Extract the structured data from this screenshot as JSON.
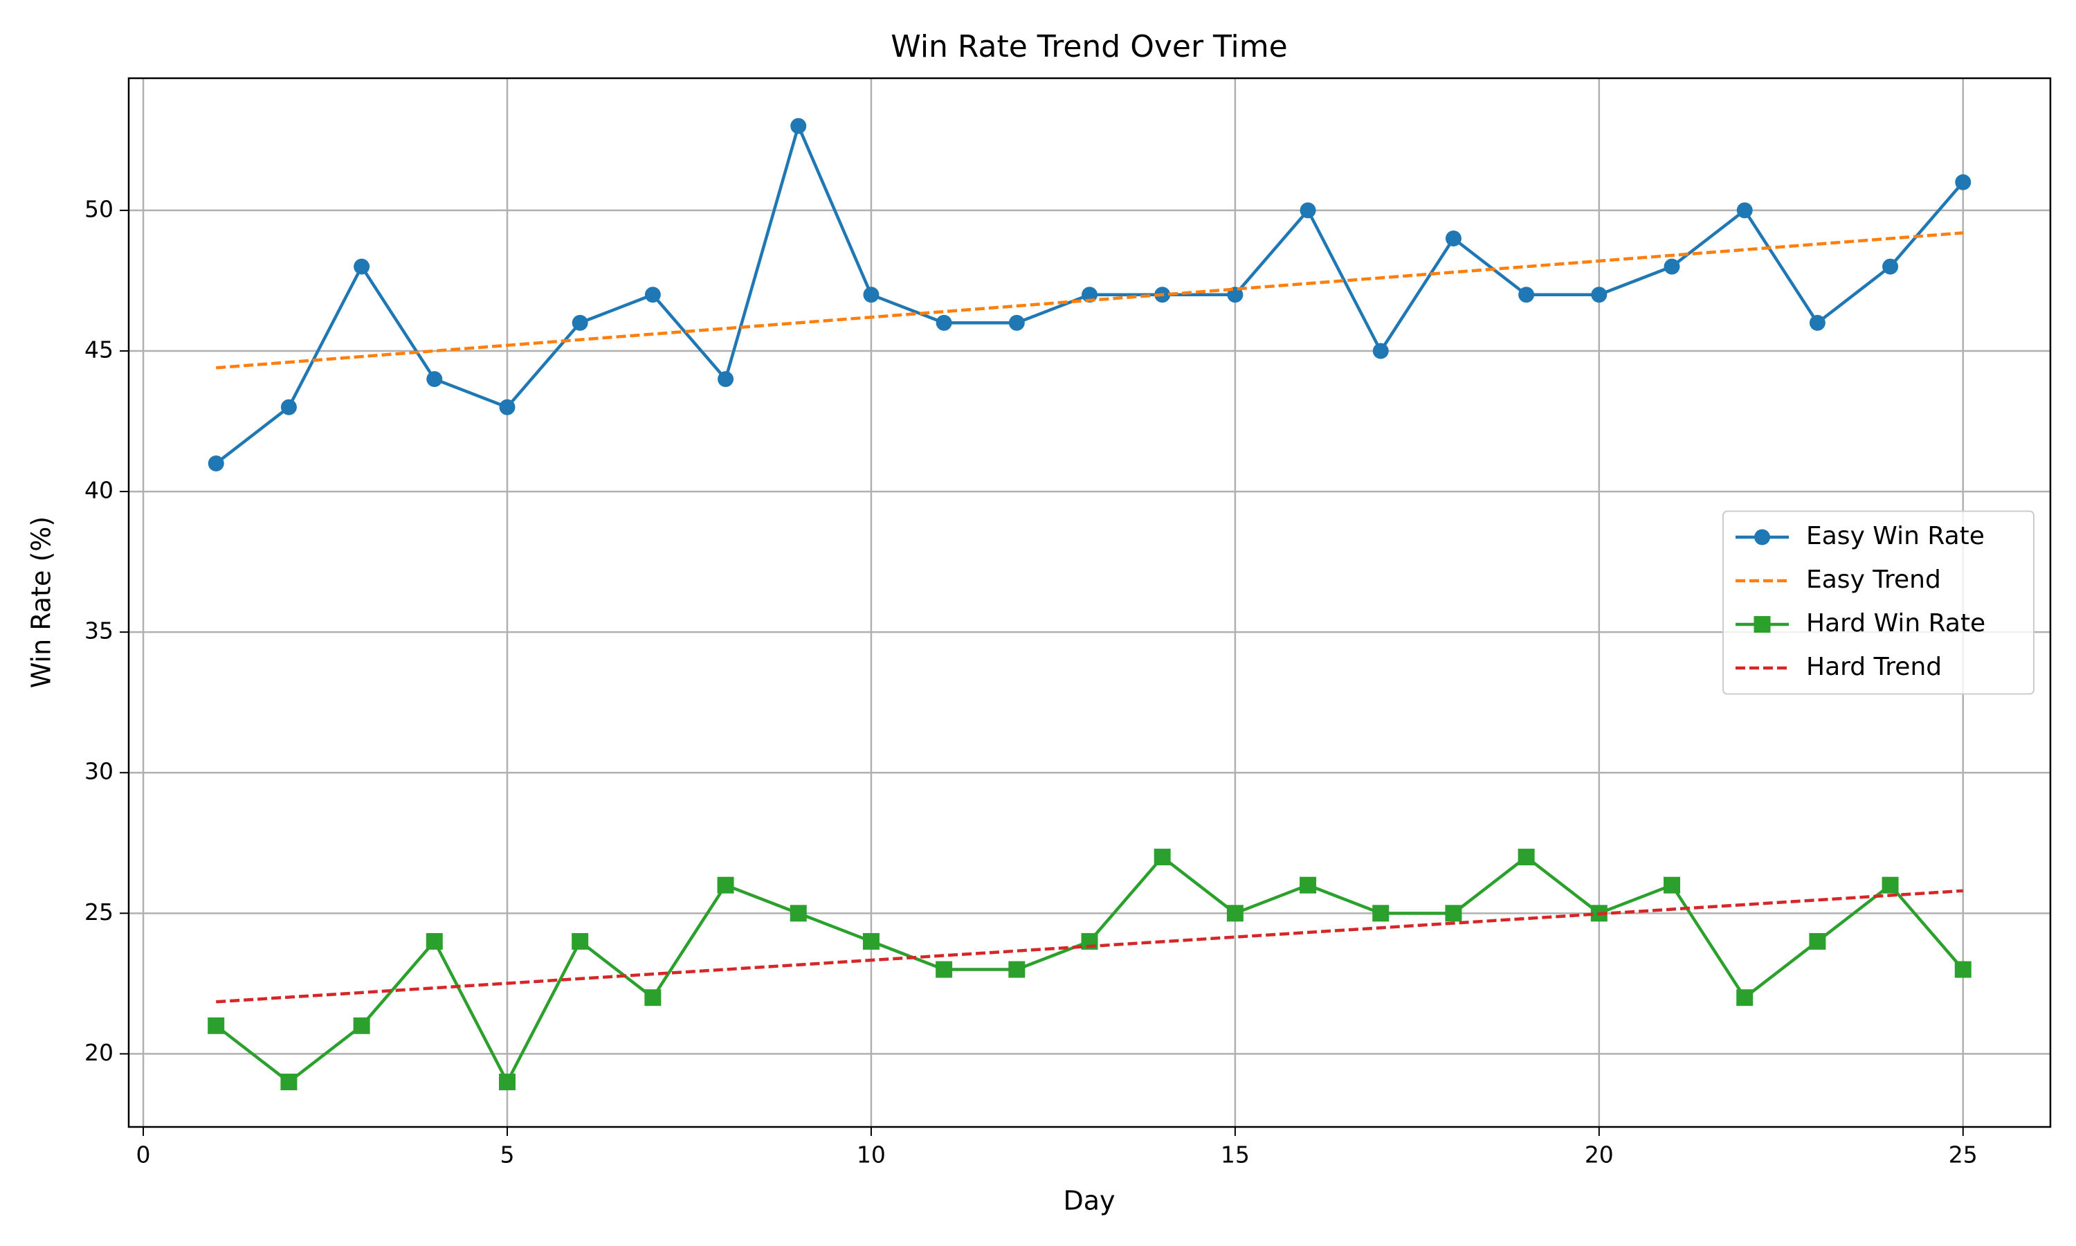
{
  "chart_data": {
    "type": "line",
    "title": "Win Rate Trend Over Time",
    "xlabel": "Day",
    "ylabel": "Win Rate (%)",
    "xlim": [
      -0.2,
      26.2
    ],
    "ylim": [
      17.4,
      54.7
    ],
    "xticks": [
      0,
      5,
      10,
      15,
      20,
      25
    ],
    "yticks": [
      20,
      25,
      30,
      35,
      40,
      45,
      50
    ],
    "grid": true,
    "legend": "center right",
    "series": [
      {
        "name": "Easy Win Rate",
        "color": "#1f77b4",
        "marker": "circle",
        "dashed": false,
        "x": [
          1,
          2,
          3,
          4,
          5,
          6,
          7,
          8,
          9,
          10,
          11,
          12,
          13,
          14,
          15,
          16,
          17,
          18,
          19,
          20,
          21,
          22,
          23,
          24,
          25
        ],
        "values": [
          41,
          43,
          48,
          44,
          43,
          46,
          47,
          44,
          53,
          47,
          46,
          46,
          47,
          47,
          47,
          50,
          45,
          49,
          47,
          47,
          48,
          50,
          46,
          48,
          51
        ]
      },
      {
        "name": "Easy Trend",
        "color": "#ff7f0e",
        "marker": null,
        "dashed": true,
        "x": [
          1,
          25
        ],
        "values": [
          44.4,
          49.2
        ]
      },
      {
        "name": "Hard Win Rate",
        "color": "#2ca02c",
        "marker": "square",
        "dashed": false,
        "x": [
          1,
          2,
          3,
          4,
          5,
          6,
          7,
          8,
          9,
          10,
          11,
          12,
          13,
          14,
          15,
          16,
          17,
          18,
          19,
          20,
          21,
          22,
          23,
          24,
          25
        ],
        "values": [
          21,
          19,
          21,
          24,
          19,
          24,
          22,
          26,
          25,
          24,
          23,
          23,
          24,
          27,
          25,
          26,
          25,
          25,
          27,
          25,
          26,
          22,
          24,
          26,
          23
        ]
      },
      {
        "name": "Hard Trend",
        "color": "#d62728",
        "marker": null,
        "dashed": true,
        "x": [
          1,
          25
        ],
        "values": [
          21.85,
          25.8
        ]
      }
    ]
  }
}
